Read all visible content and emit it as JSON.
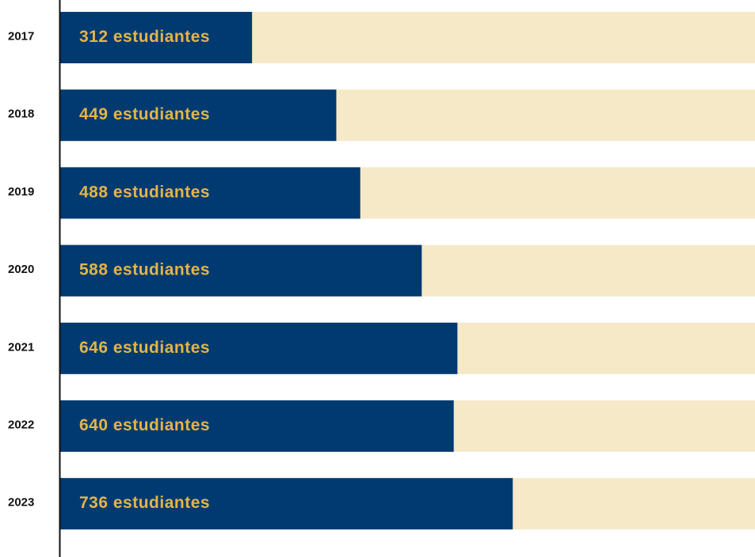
{
  "chart_data": {
    "type": "bar",
    "orientation": "horizontal",
    "categories": [
      "2017",
      "2018",
      "2019",
      "2020",
      "2021",
      "2022",
      "2023"
    ],
    "values": [
      312,
      449,
      488,
      588,
      646,
      640,
      736
    ],
    "value_labels": [
      "312 estudiantes",
      "449 estudiantes",
      "488 estudiantes",
      "588 estudiantes",
      "646 estudiantes",
      "640 estudiantes",
      "736 estudiantes"
    ],
    "color": "#003a70",
    "track_color": "#f5e9c8",
    "label_color": "#e4b448",
    "xlim": [
      0,
      1130
    ]
  }
}
